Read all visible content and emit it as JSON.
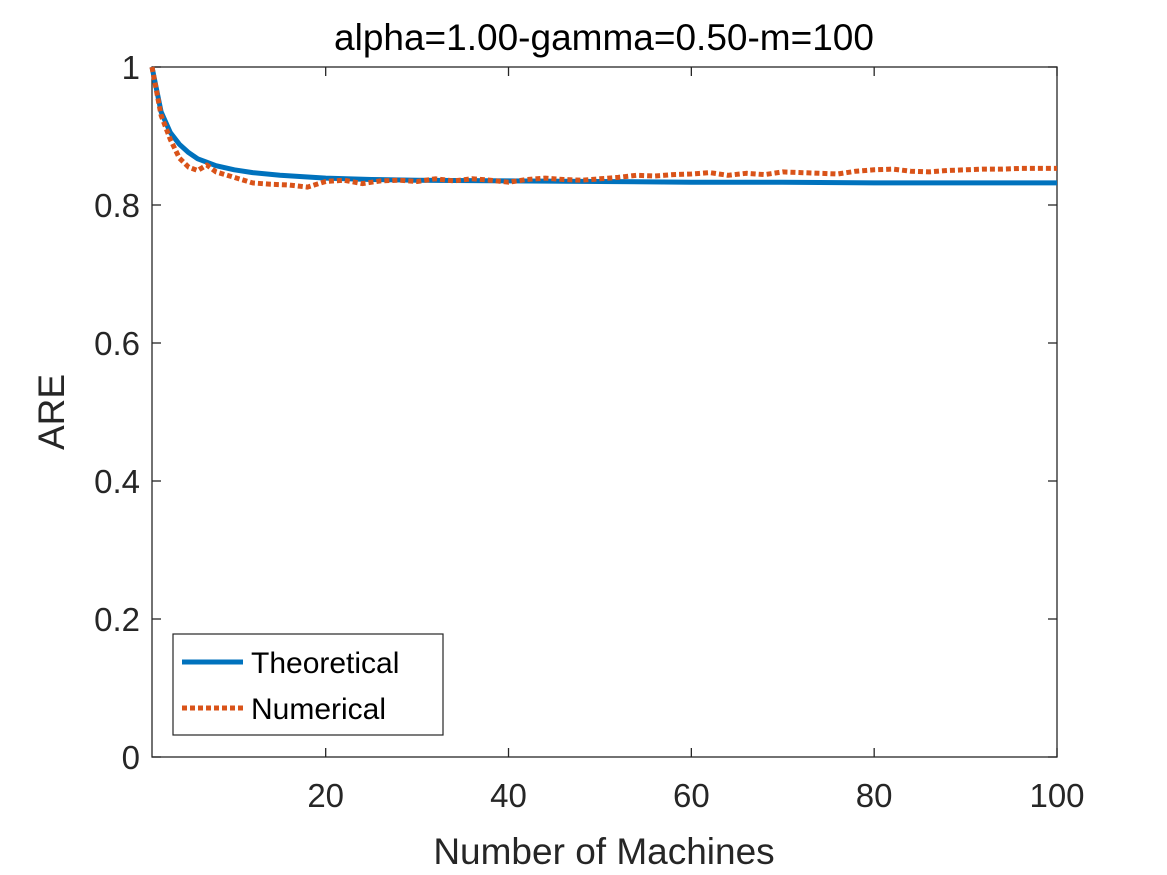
{
  "chart_data": {
    "type": "line",
    "title": "alpha=1.00-gamma=0.50-m=100",
    "xlabel": "Number of Machines",
    "ylabel": "ARE",
    "xlim": [
      1,
      100
    ],
    "ylim": [
      0,
      1
    ],
    "xticks": [
      20,
      40,
      60,
      80,
      100
    ],
    "yticks": [
      0,
      0.2,
      0.4,
      0.6,
      0.8,
      1
    ],
    "xtick_labels": [
      "20",
      "40",
      "60",
      "80",
      "100"
    ],
    "ytick_labels": [
      "0",
      "0.2",
      "0.4",
      "0.6",
      "0.8",
      "1"
    ],
    "grid": false,
    "legend_position": "bottom-left",
    "series": [
      {
        "name": "Theoretical",
        "color": "#0072BD",
        "style": "solid",
        "x": [
          1,
          2,
          3,
          4,
          5,
          6,
          7,
          8,
          10,
          12,
          15,
          20,
          25,
          30,
          40,
          50,
          60,
          70,
          80,
          90,
          100
        ],
        "y": [
          1.0,
          0.935,
          0.905,
          0.888,
          0.876,
          0.867,
          0.862,
          0.857,
          0.851,
          0.847,
          0.843,
          0.839,
          0.837,
          0.836,
          0.835,
          0.834,
          0.833,
          0.833,
          0.832,
          0.832,
          0.832
        ]
      },
      {
        "name": "Numerical",
        "color": "#D95319",
        "style": "dotted",
        "x": [
          1,
          2,
          3,
          4,
          5,
          6,
          7,
          8,
          10,
          12,
          14,
          16,
          18,
          20,
          22,
          24,
          26,
          28,
          30,
          32,
          34,
          36,
          38,
          40,
          42,
          44,
          46,
          48,
          50,
          52,
          54,
          56,
          58,
          60,
          62,
          64,
          66,
          68,
          70,
          72,
          74,
          76,
          78,
          80,
          82,
          84,
          86,
          88,
          90,
          92,
          94,
          96,
          98,
          100
        ],
        "y": [
          1.0,
          0.93,
          0.895,
          0.868,
          0.855,
          0.85,
          0.858,
          0.848,
          0.84,
          0.832,
          0.83,
          0.829,
          0.826,
          0.834,
          0.836,
          0.831,
          0.835,
          0.836,
          0.834,
          0.838,
          0.835,
          0.838,
          0.836,
          0.833,
          0.837,
          0.839,
          0.837,
          0.836,
          0.838,
          0.84,
          0.843,
          0.842,
          0.844,
          0.845,
          0.847,
          0.843,
          0.846,
          0.844,
          0.848,
          0.847,
          0.846,
          0.845,
          0.849,
          0.851,
          0.852,
          0.849,
          0.848,
          0.85,
          0.851,
          0.852,
          0.852,
          0.853,
          0.853,
          0.853
        ]
      }
    ]
  }
}
